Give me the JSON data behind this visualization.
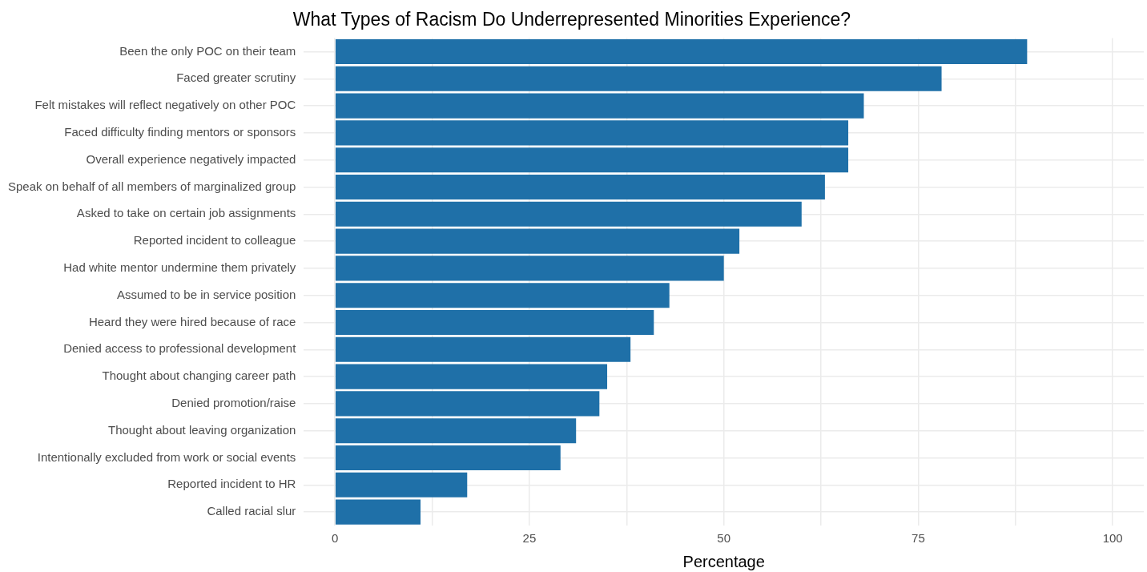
{
  "chart_data": {
    "type": "bar",
    "orientation": "horizontal",
    "title": "What Types of Racism Do Underrepresented Minorities Experience?",
    "xlabel": "Percentage",
    "categories": [
      "Been the only POC on their team",
      "Faced greater scrutiny",
      "Felt mistakes will reflect negatively on other POC",
      "Faced difficulty finding mentors or sponsors",
      "Overall experience negatively impacted",
      "Speak on behalf of all members of marginalized group",
      "Asked to take on certain job assignments",
      "Reported incident to colleague",
      "Had white mentor undermine them privately",
      "Assumed to be in service position",
      "Heard they were hired because of race",
      "Denied access to professional development",
      "Thought about changing career path",
      "Denied promotion/raise",
      "Thought about leaving organization",
      "Intentionally excluded from work or social events",
      "Reported incident to HR",
      "Called racial slur"
    ],
    "values": [
      89,
      78,
      68,
      66,
      66,
      63,
      60,
      52,
      50,
      43,
      41,
      38,
      35,
      34,
      31,
      29,
      17,
      11
    ],
    "color": "#1f70a8",
    "xlim": [
      -4,
      104
    ],
    "xticks": [
      0,
      {
        "value": 12.5,
        "label": null
      },
      25,
      {
        "value": 37.5,
        "label": null
      },
      50,
      {
        "value": 62.5,
        "label": null
      },
      75,
      {
        "value": 87.5,
        "label": null
      },
      100
    ],
    "grid": true,
    "legend": false
  }
}
